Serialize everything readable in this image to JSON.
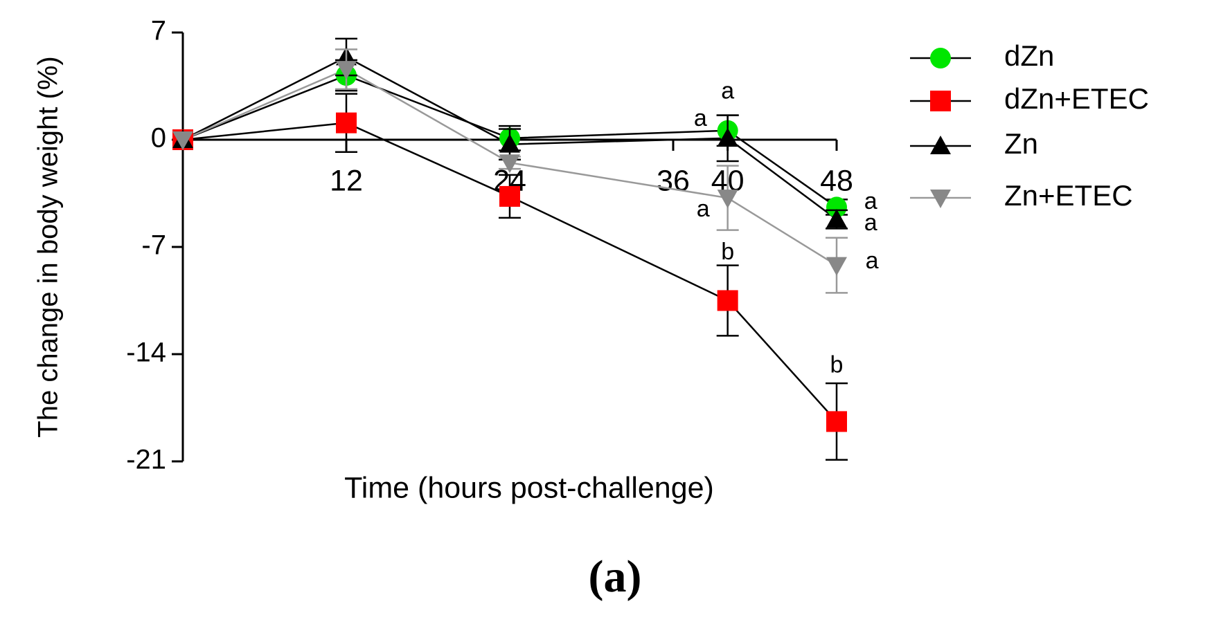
{
  "chart_data": {
    "type": "line",
    "xlabel": "Time (hours post-challenge)",
    "ylabel": "The change in body weight (%)",
    "caption": "(a)",
    "x": [
      0,
      12,
      24,
      40,
      48
    ],
    "xlim": [
      0,
      48
    ],
    "xticks": [
      12,
      24,
      36,
      40,
      48
    ],
    "ylim": [
      -21,
      7
    ],
    "yticks": [
      7,
      0,
      -7,
      -14,
      -21
    ],
    "series": [
      {
        "name": "dZn",
        "color": "#00e600",
        "line_color": "#000000",
        "marker": "circle",
        "values": [
          0,
          4.2,
          0.1,
          0.6,
          -4.4
        ],
        "errors": [
          0,
          1.0,
          0.8,
          1.0,
          0.5
        ]
      },
      {
        "name": "dZn+ETEC",
        "color": "#ff0000",
        "line_color": "#000000",
        "marker": "square",
        "values": [
          0,
          1.1,
          -3.7,
          -10.5,
          -18.4
        ],
        "errors": [
          0,
          1.9,
          1.4,
          2.3,
          2.5
        ]
      },
      {
        "name": "Zn",
        "color": "#000000",
        "line_color": "#000000",
        "marker": "triangle-up",
        "values": [
          0,
          5.4,
          -0.3,
          0.1,
          -5.2
        ],
        "errors": [
          0,
          1.2,
          1.0,
          1.5,
          0.6
        ]
      },
      {
        "name": "Zn+ETEC",
        "color": "#888888",
        "line_color": "#999999",
        "marker": "triangle-down",
        "values": [
          0,
          4.6,
          -1.5,
          -3.8,
          -8.2
        ],
        "errors": [
          0,
          1.3,
          0.4,
          2.1,
          1.8
        ]
      }
    ],
    "annotations": [
      {
        "text": "a",
        "x": 40,
        "y": 3.1
      },
      {
        "text": "a",
        "x": 38,
        "y": 1.3
      },
      {
        "text": "a",
        "x": 38.2,
        "y": -4.6
      },
      {
        "text": "b",
        "x": 40,
        "y": -7.4
      },
      {
        "text": "a",
        "x": 50.5,
        "y": -4.1
      },
      {
        "text": "a",
        "x": 50.5,
        "y": -5.5
      },
      {
        "text": "a",
        "x": 50.6,
        "y": -8.0
      },
      {
        "text": "b",
        "x": 48,
        "y": -14.8
      }
    ],
    "legend": "right"
  }
}
